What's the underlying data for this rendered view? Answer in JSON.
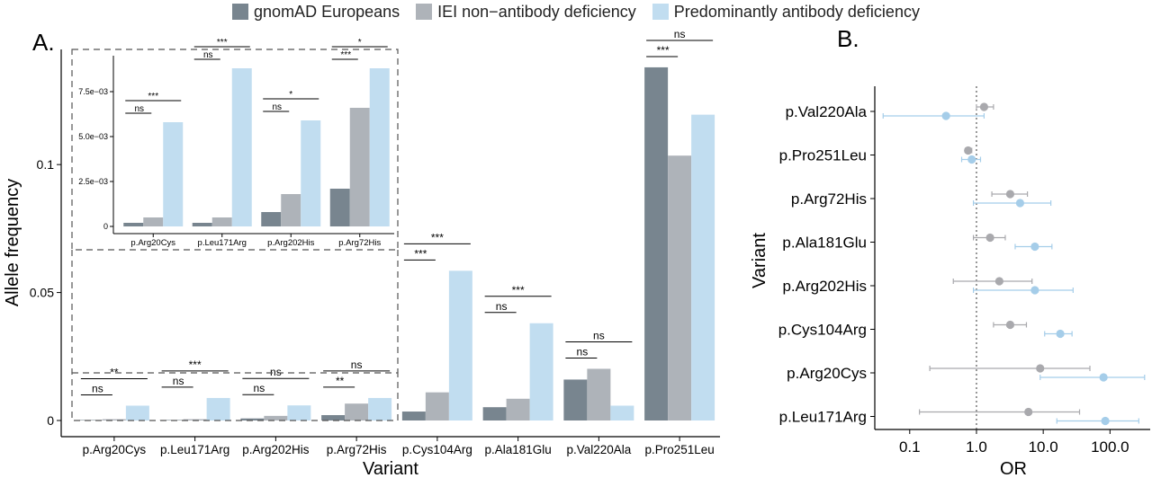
{
  "legend": {
    "items": [
      {
        "label": "gnomAD Europeans",
        "color": "#78858f"
      },
      {
        "label": "IEI non−antibody deficiency",
        "color": "#aeb3b9"
      },
      {
        "label": "Predominantly antibody deficiency",
        "color": "#c1ddf0"
      }
    ]
  },
  "chart_data": [
    {
      "panel_label": "A.",
      "type": "bar",
      "xlabel": "Variant",
      "ylabel": "Allele frequency",
      "categories": [
        "p.Arg20Cys",
        "p.Leu171Arg",
        "p.Arg202His",
        "p.Arg72His",
        "p.Cys104Arg",
        "p.Ala181Glu",
        "p.Val220Ala",
        "p.Pro251Leu"
      ],
      "series": [
        {
          "name": "gnomAD Europeans",
          "values": [
            0.0002,
            0.0002,
            0.0008,
            0.0021,
            0.0035,
            0.0052,
            0.016,
            0.138
          ]
        },
        {
          "name": "IEI non−antibody deficiency",
          "values": [
            0.0005,
            0.0005,
            0.0018,
            0.0066,
            0.011,
            0.0085,
            0.0202,
            0.1035
          ]
        },
        {
          "name": "Predominantly antibody deficiency",
          "values": [
            0.0058,
            0.0088,
            0.0059,
            0.0088,
            0.0585,
            0.038,
            0.0058,
            0.1195
          ]
        }
      ],
      "yticks": [
        "0",
        "0.05",
        "0.1"
      ],
      "ylim": [
        0,
        0.145
      ],
      "significance": [
        {
          "lower": "ns",
          "upper": "**"
        },
        {
          "lower": "ns",
          "upper": "***"
        },
        {
          "lower": "ns",
          "upper": "ns"
        },
        {
          "lower": "**",
          "upper": "ns"
        },
        {
          "lower": "***",
          "upper": "***"
        },
        {
          "lower": "ns",
          "upper": "***"
        },
        {
          "lower": "ns",
          "upper": "ns"
        },
        {
          "lower": "***",
          "upper": "ns"
        }
      ],
      "inset": {
        "type": "bar",
        "categories": [
          "p.Arg20Cys",
          "p.Leu171Arg",
          "p.Arg202His",
          "p.Arg72His"
        ],
        "yticks": [
          "0",
          "2.5e−03",
          "5.0e−03",
          "7.5e−03"
        ],
        "ylim": [
          0,
          0.0095
        ],
        "significance": [
          {
            "lower": "ns",
            "upper": "***"
          },
          {
            "lower": "ns",
            "upper": "***"
          },
          {
            "lower": "ns",
            "upper": "*"
          },
          {
            "lower": "***",
            "upper": "*"
          }
        ]
      }
    },
    {
      "panel_label": "B.",
      "type": "scatter",
      "xlabel": "OR",
      "ylabel": "Variant",
      "x_scale": "log",
      "xlim": [
        0.03,
        400
      ],
      "xticks": [
        "0.1",
        "1.0",
        "10.0",
        "100.0"
      ],
      "reference_line": 1.0,
      "categories": [
        "p.Val220Ala",
        "p.Pro251Leu",
        "p.Arg72His",
        "p.Ala181Glu",
        "p.Arg202His",
        "p.Cys104Arg",
        "p.Arg20Cys",
        "p.Leu171Arg"
      ],
      "series": [
        {
          "name": "IEI non−antibody deficiency",
          "color": "#a9a9ad",
          "or": [
            1.3,
            0.75,
            3.2,
            1.6,
            2.2,
            3.2,
            9.0,
            6.0
          ],
          "ci_low": [
            1.0,
            0.68,
            1.7,
            0.9,
            0.45,
            1.8,
            0.2,
            0.14
          ],
          "ci_high": [
            1.8,
            0.85,
            5.8,
            2.7,
            6.8,
            5.6,
            50,
            35
          ]
        },
        {
          "name": "Predominantly antibody deficiency",
          "color": "#a5cde9",
          "or": [
            0.35,
            0.85,
            4.5,
            7.5,
            7.5,
            18.0,
            80.0,
            85.0
          ],
          "ci_low": [
            0.04,
            0.6,
            0.9,
            3.8,
            0.9,
            10.5,
            9.0,
            16.0
          ],
          "ci_high": [
            1.3,
            1.15,
            13.0,
            13.5,
            28.0,
            27.0,
            330.0,
            270.0
          ]
        }
      ]
    }
  ]
}
